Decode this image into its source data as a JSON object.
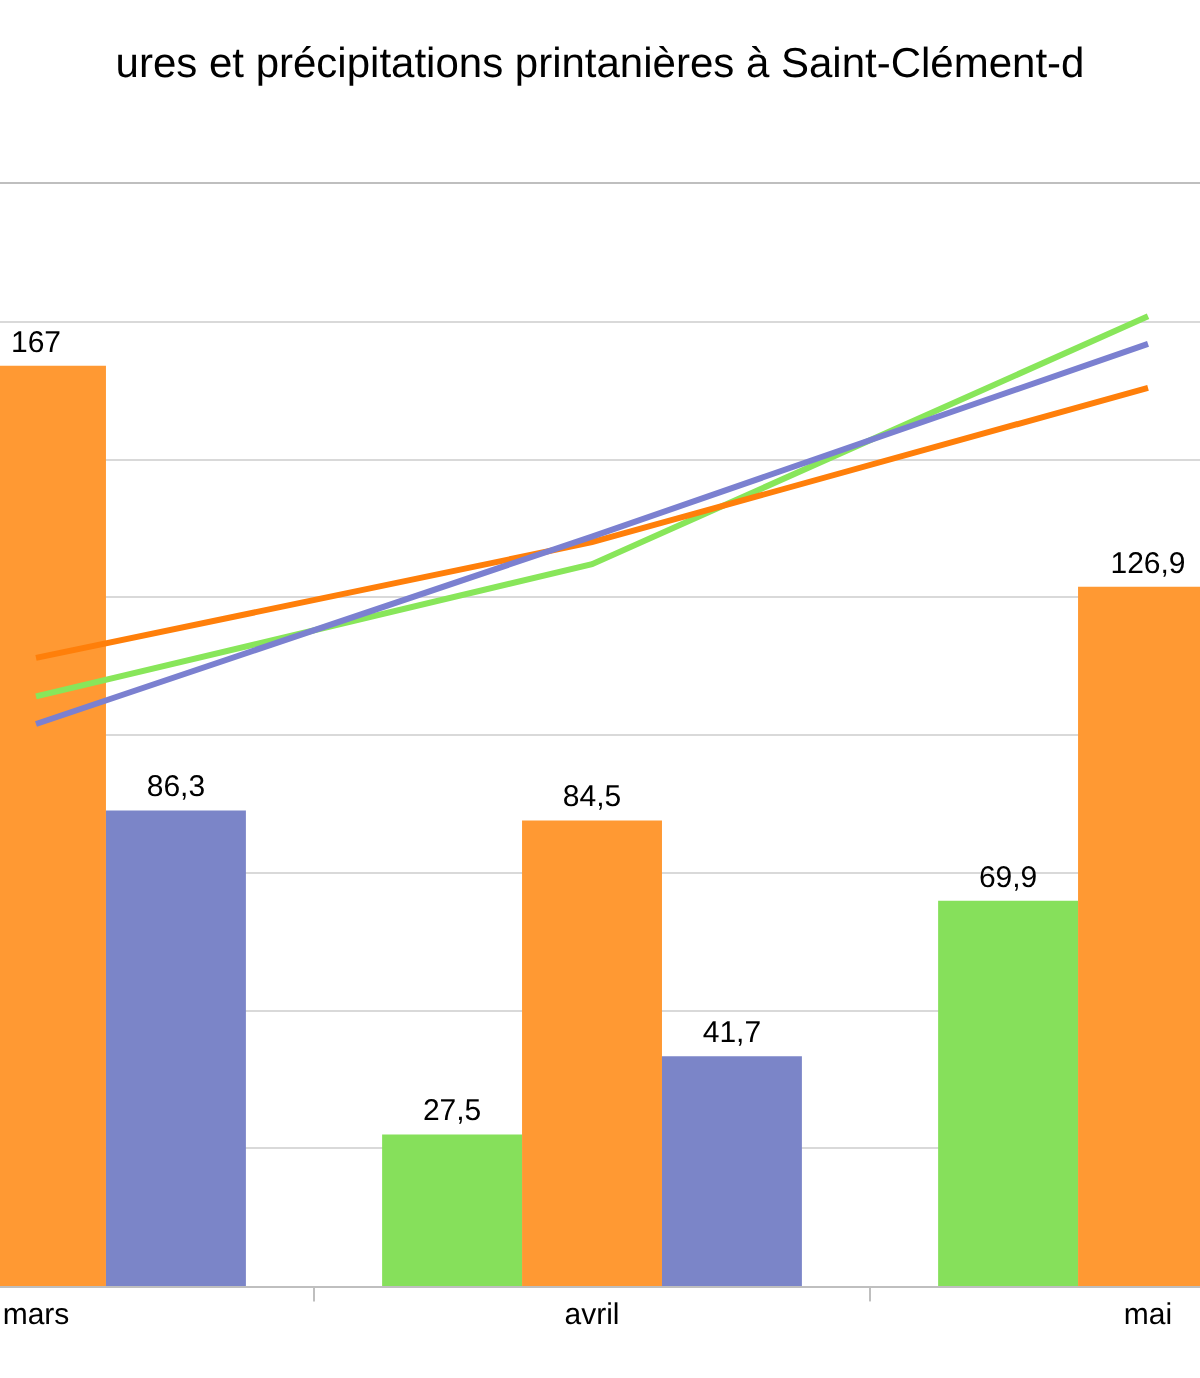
{
  "chart_data": {
    "type": "bar",
    "title": "ures et précipitations printanières à Saint-Clément-d",
    "categories": [
      "mars",
      "avril",
      "mai"
    ],
    "series": [
      {
        "color": "#86e05b",
        "values": [
          null,
          27.5,
          69.9
        ],
        "value_labels": [
          null,
          "27,5",
          "69,9"
        ]
      },
      {
        "color": "#ff9933",
        "values": [
          167,
          84.5,
          126.9
        ],
        "value_labels": [
          "167",
          "84,5",
          "126,9"
        ]
      },
      {
        "color": "#7b85c8",
        "values": [
          86.3,
          41.7,
          null
        ],
        "value_labels": [
          "86,3",
          "41,7",
          null
        ]
      },
      {
        "type": "line",
        "color": "#88e65a",
        "values": [
          107,
          131,
          176
        ]
      },
      {
        "type": "line",
        "color": "#ff7f0a",
        "values": [
          114,
          135,
          163
        ]
      },
      {
        "type": "line",
        "color": "#7b80d0",
        "values": [
          102,
          136,
          171
        ]
      }
    ],
    "ylim": [
      0,
      200
    ],
    "yticks": [
      {
        "value": 0,
        "label": null
      },
      {
        "value": 25,
        "label": null
      },
      {
        "value": 50,
        "label": null
      },
      {
        "value": 75,
        "label": null
      },
      {
        "value": 100,
        "label": null
      },
      {
        "value": 125,
        "label": null
      },
      {
        "value": 150,
        "label": null
      },
      {
        "value": 175,
        "label": null
      }
    ],
    "grid": "y",
    "tick_labels": "x",
    "marker": "none",
    "line_style": "solid"
  }
}
